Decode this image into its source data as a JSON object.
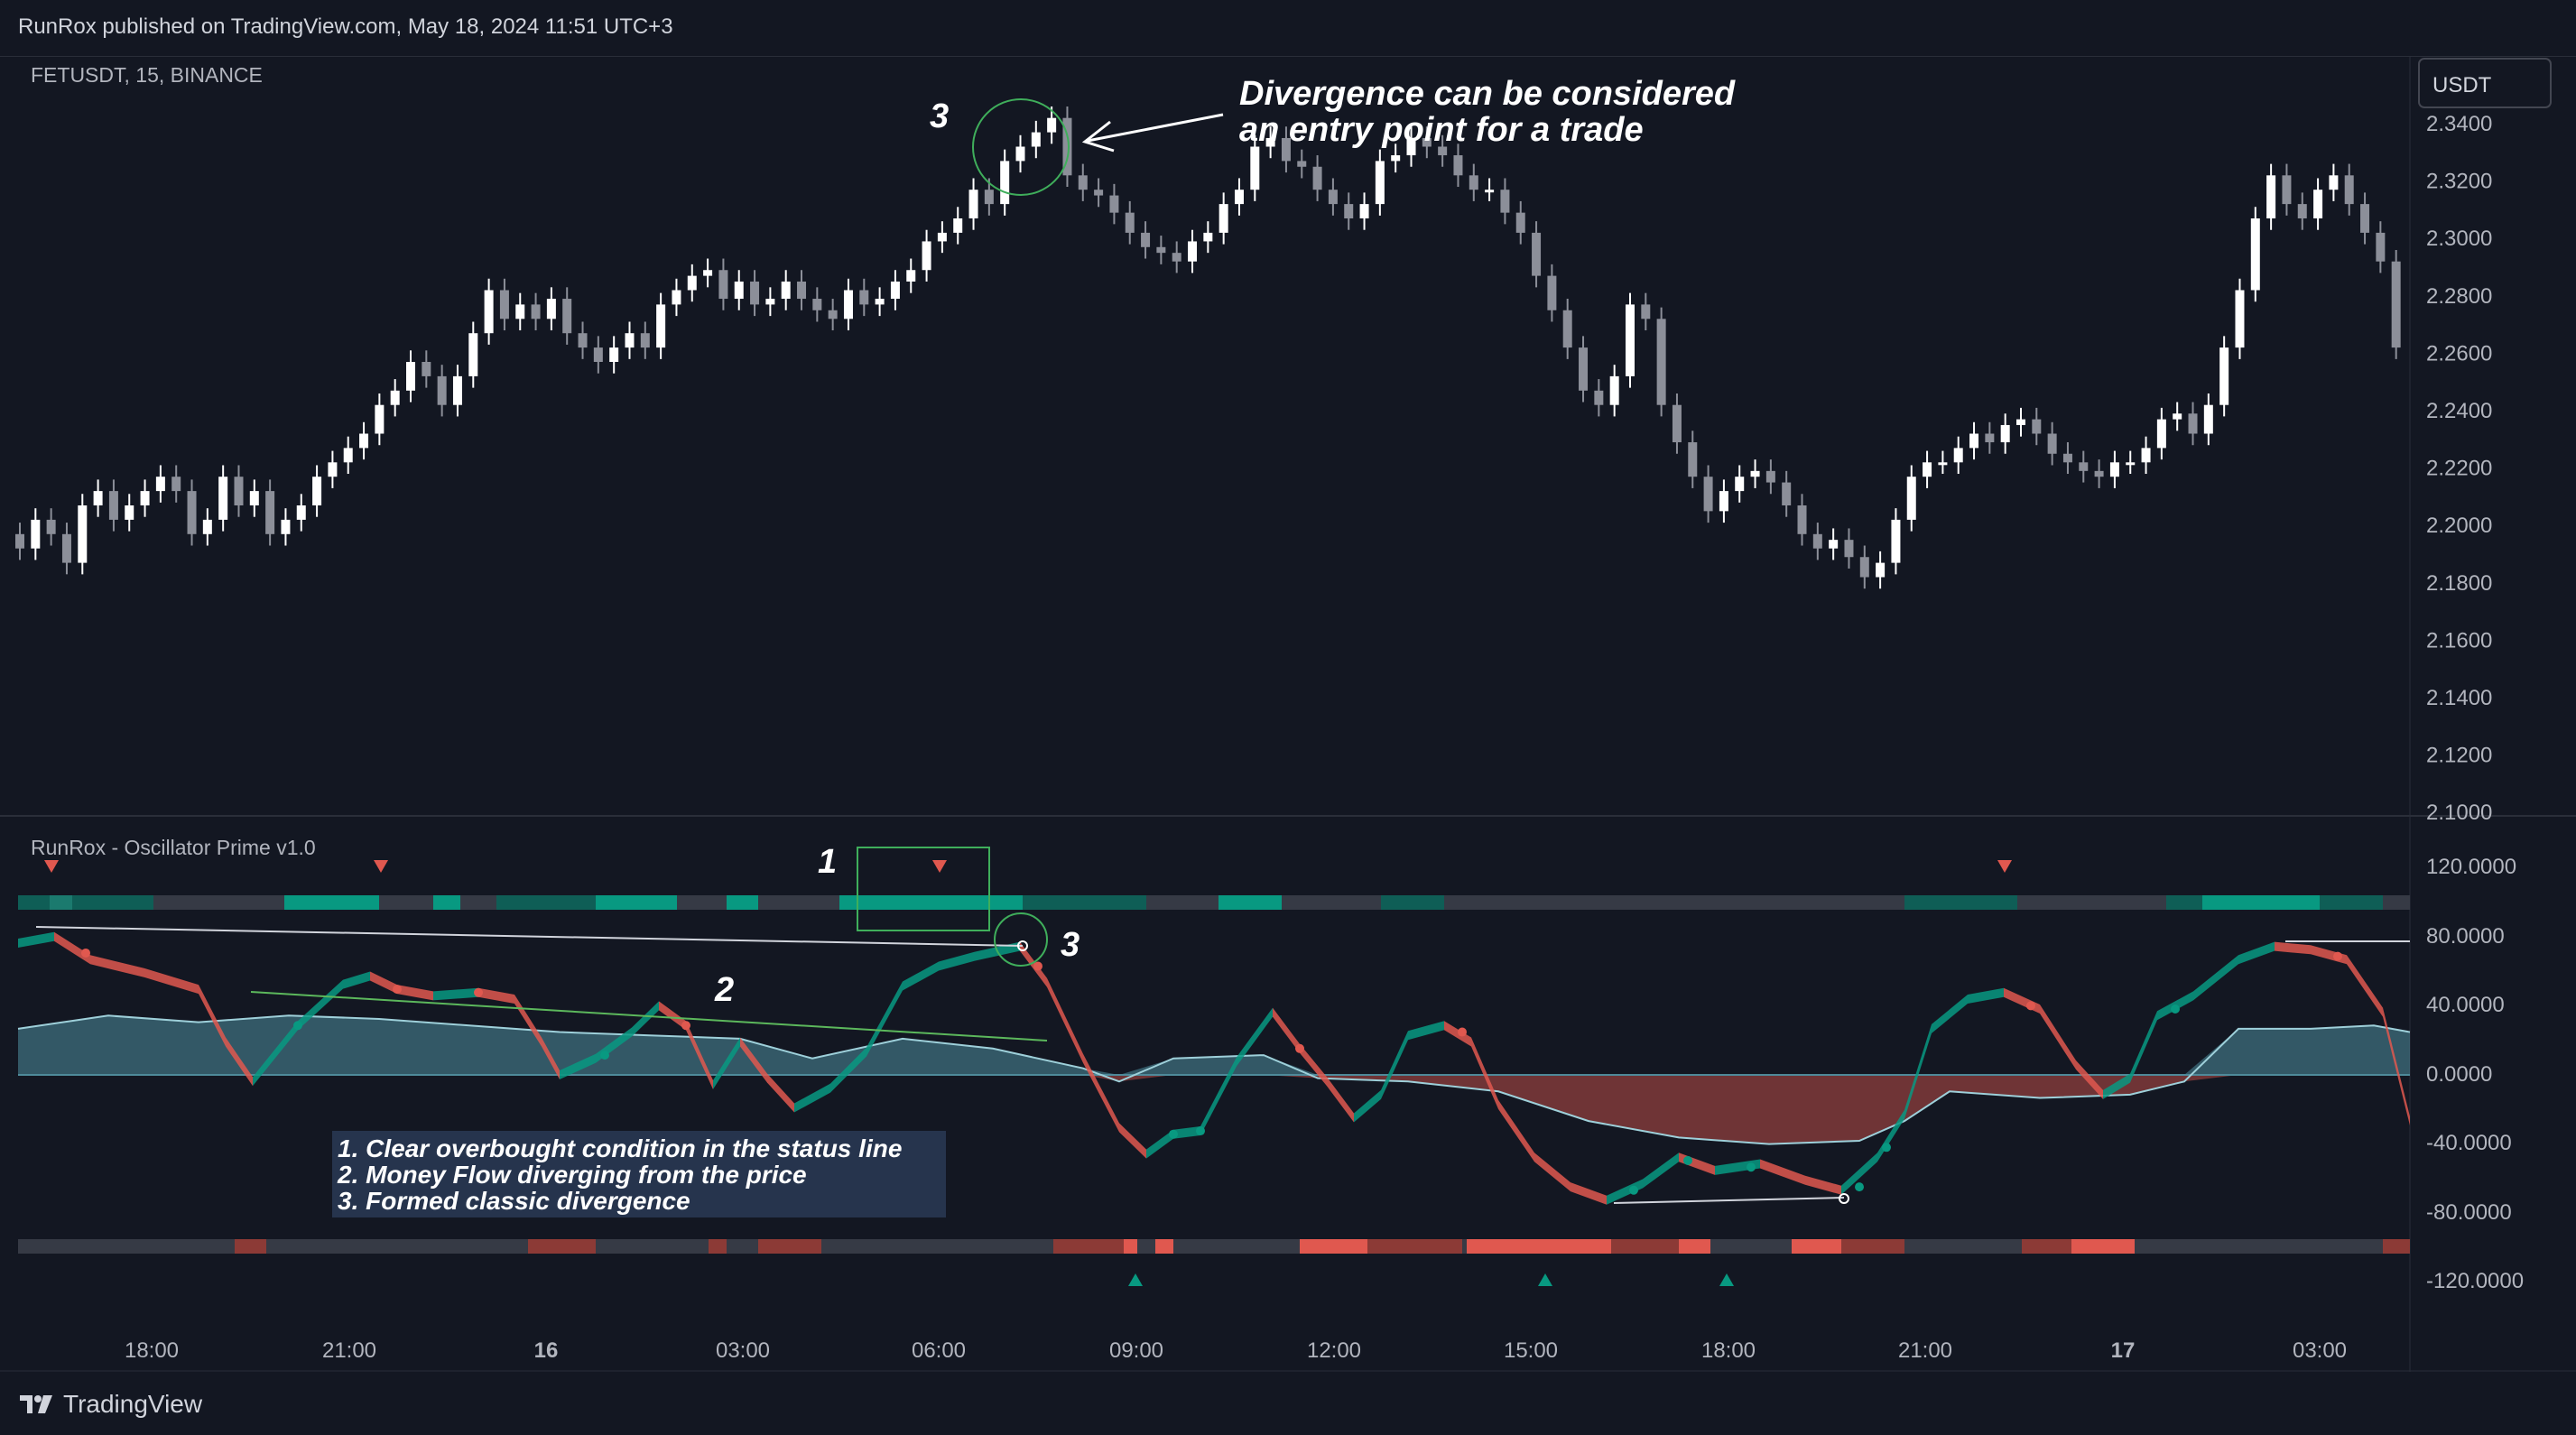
{
  "header": {
    "published": "RunRox published on TradingView.com, May 18, 2024 11:51 UTC+3"
  },
  "symbol": {
    "label": "FETUSDT, 15, BINANCE"
  },
  "currency_button": {
    "label": "USDT"
  },
  "price_axis": {
    "ticks": [
      "2.3400",
      "2.3200",
      "2.3000",
      "2.2800",
      "2.2600",
      "2.2400",
      "2.2200",
      "2.2000",
      "2.1800",
      "2.1600",
      "2.1400",
      "2.1200",
      "2.1000"
    ]
  },
  "indicator": {
    "name": "RunRox - Oscillator Prime v1.0"
  },
  "osc_axis": {
    "ticks": [
      "120.0000",
      "80.0000",
      "40.0000",
      "0.0000",
      "-40.0000",
      "-80.0000",
      "-120.0000"
    ]
  },
  "time_axis": {
    "ticks": [
      "18:00",
      "21:00",
      "16",
      "03:00",
      "06:00",
      "09:00",
      "12:00",
      "15:00",
      "18:00",
      "21:00",
      "17",
      "03:00"
    ]
  },
  "annotations": {
    "callout_line1": "Divergence can be considered",
    "callout_line2": "an entry point for a trade",
    "marker_top": "3",
    "marker_one": "1",
    "marker_two": "2",
    "marker_three": "3",
    "legend": [
      "1. Clear overbought condition in the status line",
      "2. Money Flow diverging from the price",
      "3. Formed classic divergence"
    ]
  },
  "colors": {
    "background": "#131722",
    "candle_up": "#ffffff",
    "candle_down": "#8c8f99",
    "teal": "#089981",
    "red": "#e0584f",
    "grid_text": "#b2b5be"
  },
  "footer": {
    "brand": "TradingView"
  }
}
